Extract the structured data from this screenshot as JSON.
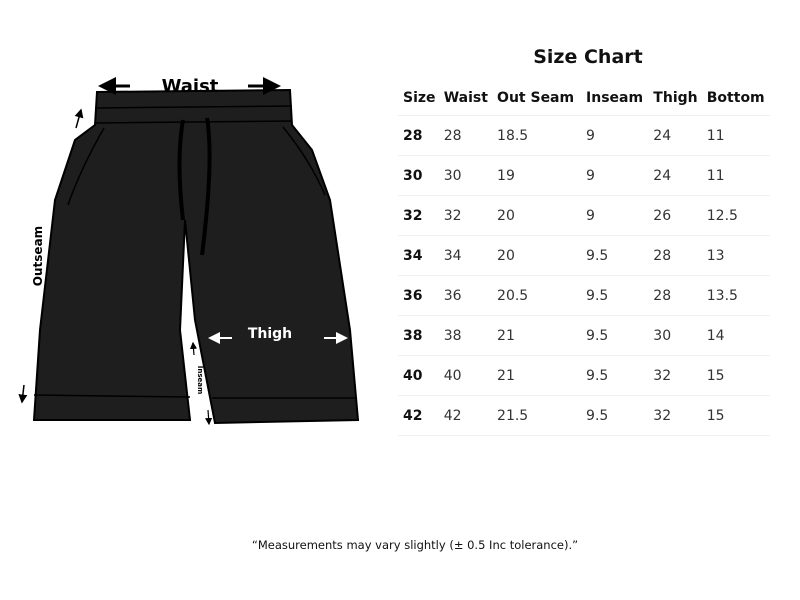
{
  "diagram": {
    "labels": {
      "waist": "Waist",
      "outseam": "Outseam",
      "thigh": "Thigh",
      "inseam": "Inseam"
    },
    "garment_color": "#1e1e1e"
  },
  "size_chart": {
    "title": "Size Chart",
    "columns": [
      "Size",
      "Waist",
      "Out Seam",
      "Inseam",
      "Thigh",
      "Bottom"
    ],
    "rows": [
      [
        "28",
        "28",
        "18.5",
        "9",
        "24",
        "11"
      ],
      [
        "30",
        "30",
        "19",
        "9",
        "24",
        "11"
      ],
      [
        "32",
        "32",
        "20",
        "9",
        "26",
        "12.5"
      ],
      [
        "34",
        "34",
        "20",
        "9.5",
        "28",
        "13"
      ],
      [
        "36",
        "36",
        "20.5",
        "9.5",
        "28",
        "13.5"
      ],
      [
        "38",
        "38",
        "21",
        "9.5",
        "30",
        "14"
      ],
      [
        "40",
        "40",
        "21",
        "9.5",
        "32",
        "15"
      ],
      [
        "42",
        "42",
        "21.5",
        "9.5",
        "32",
        "15"
      ]
    ]
  },
  "note": "“Measurements may vary slightly (± 0.5 Inc tolerance).”"
}
